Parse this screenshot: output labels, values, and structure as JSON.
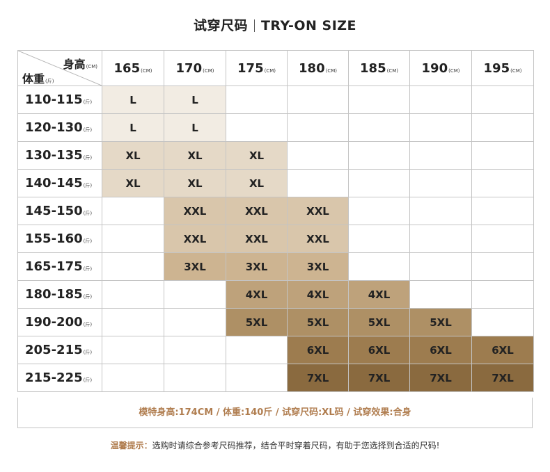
{
  "title": {
    "cn": "试穿尺码",
    "en": "TRY-ON SIZE"
  },
  "corner": {
    "height_label": "身高",
    "height_unit": "(CM)",
    "weight_label": "体重",
    "weight_unit": "(斤)"
  },
  "columns": [
    {
      "label": "165",
      "unit": "(CM)"
    },
    {
      "label": "170",
      "unit": "(CM)"
    },
    {
      "label": "175",
      "unit": "(CM)"
    },
    {
      "label": "180",
      "unit": "(CM)"
    },
    {
      "label": "185",
      "unit": "(CM)"
    },
    {
      "label": "190",
      "unit": "(CM)"
    },
    {
      "label": "195",
      "unit": "(CM)"
    }
  ],
  "rows": [
    {
      "label": "110-115",
      "unit": "(斤)",
      "cells": [
        "L",
        "L",
        "",
        "",
        "",
        "",
        ""
      ]
    },
    {
      "label": "120-130",
      "unit": "(斤)",
      "cells": [
        "L",
        "L",
        "",
        "",
        "",
        "",
        ""
      ]
    },
    {
      "label": "130-135",
      "unit": "(斤)",
      "cells": [
        "XL",
        "XL",
        "XL",
        "",
        "",
        "",
        ""
      ]
    },
    {
      "label": "140-145",
      "unit": "(斤)",
      "cells": [
        "XL",
        "XL",
        "XL",
        "",
        "",
        "",
        ""
      ]
    },
    {
      "label": "145-150",
      "unit": "(斤)",
      "cells": [
        "",
        "XXL",
        "XXL",
        "XXL",
        "",
        "",
        ""
      ]
    },
    {
      "label": "155-160",
      "unit": "(斤)",
      "cells": [
        "",
        "XXL",
        "XXL",
        "XXL",
        "",
        "",
        ""
      ]
    },
    {
      "label": "165-175",
      "unit": "(斤)",
      "cells": [
        "",
        "3XL",
        "3XL",
        "3XL",
        "",
        "",
        ""
      ]
    },
    {
      "label": "180-185",
      "unit": "(斤)",
      "cells": [
        "",
        "",
        "4XL",
        "4XL",
        "4XL",
        "",
        ""
      ]
    },
    {
      "label": "190-200",
      "unit": "(斤)",
      "cells": [
        "",
        "",
        "5XL",
        "5XL",
        "5XL",
        "5XL",
        ""
      ]
    },
    {
      "label": "205-215",
      "unit": "(斤)",
      "cells": [
        "",
        "",
        "",
        "6XL",
        "6XL",
        "6XL",
        "6XL"
      ]
    },
    {
      "label": "215-225",
      "unit": "(斤)",
      "cells": [
        "",
        "",
        "",
        "7XL",
        "7XL",
        "7XL",
        "7XL"
      ]
    }
  ],
  "size_colors": {
    "L": "#f2ece3",
    "XL": "#e5d9c7",
    "XXL": "#d9c6ab",
    "3XL": "#cdb491",
    "4XL": "#bea27b",
    "5XL": "#ae9065",
    "6XL": "#9d7c4f",
    "7XL": "#8a6a3f"
  },
  "model_info": "模特身高:174CM  /  体重:140斤  /  试穿尺码:XL码  /  试穿效果:合身",
  "tip": {
    "label": "温馨提示：",
    "text": "选购时请综合参考尺码推荐，结合平时穿着尺码，有助于您选择到合适的尺码!"
  }
}
